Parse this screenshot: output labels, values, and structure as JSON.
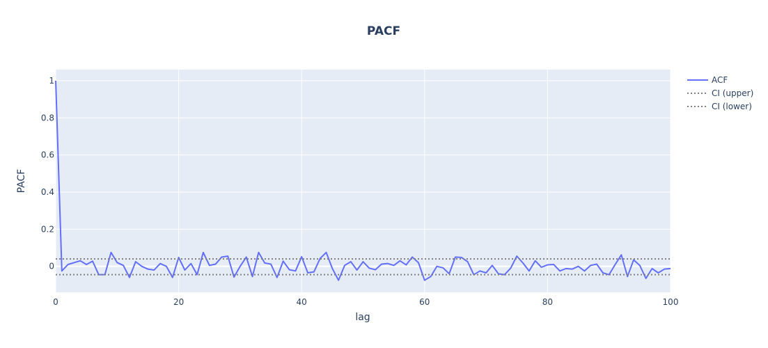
{
  "colors": {
    "background": "#ffffff",
    "plot_bg": "#E5ECF6",
    "grid": "#ffffff",
    "text": "#2a3f5f",
    "acf_line": "#636EFA",
    "ci_line": "#808080"
  },
  "chart_data": {
    "type": "line",
    "title": "PACF",
    "xlabel": "lag",
    "ylabel": "PACF",
    "xlim": [
      0,
      100
    ],
    "ylim": [
      -0.14,
      1.06
    ],
    "xticks": [
      0,
      20,
      40,
      60,
      80,
      100
    ],
    "xtick_labels": [
      "0",
      "20",
      "40",
      "60",
      "80",
      "100"
    ],
    "yticks": [
      0,
      0.2,
      0.4,
      0.6,
      0.8,
      1
    ],
    "ytick_labels": [
      "0",
      "0.2",
      "0.4",
      "0.6",
      "0.8",
      "1"
    ],
    "grid": true,
    "legend_position": "top-right, outside plot",
    "series": [
      {
        "name": "ACF",
        "style": "solid",
        "x": [
          0,
          1,
          2,
          3,
          4,
          5,
          6,
          7,
          8,
          9,
          10,
          11,
          12,
          13,
          14,
          15,
          16,
          17,
          18,
          19,
          20,
          21,
          22,
          23,
          24,
          25,
          26,
          27,
          28,
          29,
          30,
          31,
          32,
          33,
          34,
          35,
          36,
          37,
          38,
          39,
          40,
          41,
          42,
          43,
          44,
          45,
          46,
          47,
          48,
          49,
          50,
          51,
          52,
          53,
          54,
          55,
          56,
          57,
          58,
          59,
          60,
          61,
          62,
          63,
          64,
          65,
          66,
          67,
          68,
          69,
          70,
          71,
          72,
          73,
          74,
          75,
          76,
          77,
          78,
          79,
          80,
          81,
          82,
          83,
          84,
          85,
          86,
          87,
          88,
          89,
          90,
          91,
          92,
          93,
          94,
          95,
          96,
          97,
          98,
          99,
          100
        ],
        "values": [
          1.0,
          -0.025,
          0.01,
          0.02,
          0.03,
          0.01,
          0.028,
          -0.045,
          -0.045,
          0.075,
          0.02,
          0.005,
          -0.06,
          0.025,
          0.0,
          -0.015,
          -0.02,
          0.015,
          0.0,
          -0.06,
          0.048,
          -0.02,
          0.015,
          -0.045,
          0.075,
          0.005,
          0.012,
          0.05,
          0.055,
          -0.058,
          0.0,
          0.05,
          -0.055,
          0.075,
          0.018,
          0.012,
          -0.06,
          0.028,
          -0.018,
          -0.025,
          0.052,
          -0.035,
          -0.03,
          0.042,
          0.075,
          -0.012,
          -0.075,
          0.005,
          0.025,
          -0.02,
          0.025,
          -0.01,
          -0.018,
          0.012,
          0.015,
          0.005,
          0.03,
          0.008,
          0.05,
          0.02,
          -0.075,
          -0.055,
          0.0,
          -0.008,
          -0.04,
          0.05,
          0.048,
          0.025,
          -0.045,
          -0.025,
          -0.035,
          0.005,
          -0.04,
          -0.045,
          -0.01,
          0.055,
          0.018,
          -0.025,
          0.03,
          -0.005,
          0.008,
          0.01,
          -0.025,
          -0.012,
          -0.015,
          0.0,
          -0.025,
          0.005,
          0.012,
          -0.035,
          -0.045,
          0.01,
          0.062,
          -0.055,
          0.035,
          0.005,
          -0.065,
          -0.012,
          -0.035,
          -0.015,
          -0.012
        ]
      },
      {
        "name": "CI (upper)",
        "style": "dotted",
        "x": [
          0,
          100
        ],
        "values": [
          0.04,
          0.04
        ]
      },
      {
        "name": "CI (lower)",
        "style": "dotted",
        "x": [
          0,
          100
        ],
        "values": [
          -0.045,
          -0.045
        ]
      }
    ]
  }
}
